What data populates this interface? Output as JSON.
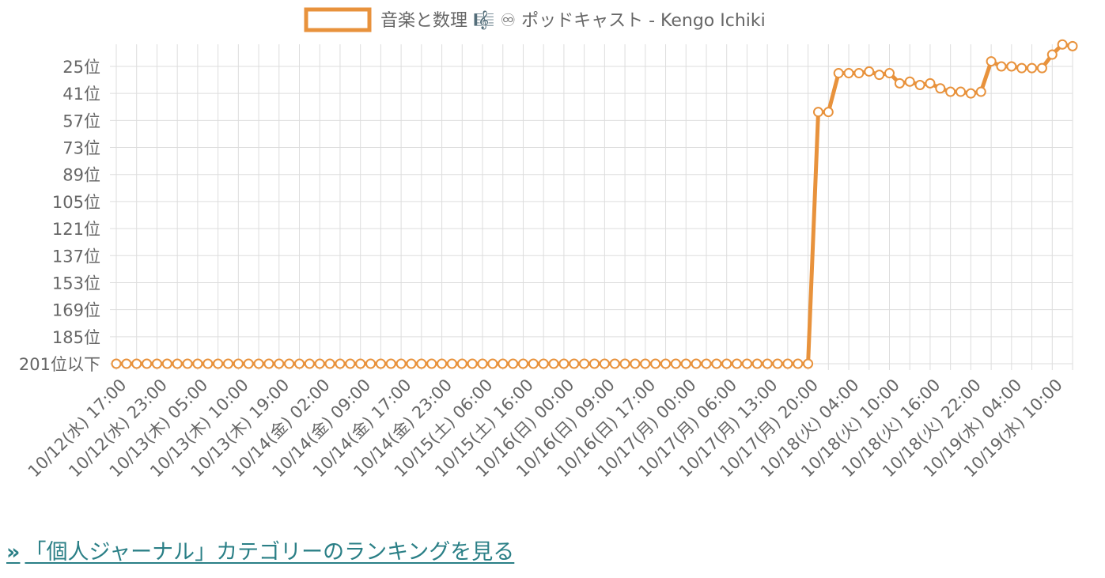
{
  "colors": {
    "series": "#e8923c",
    "grid": "#dddddd",
    "tick_text": "#666666",
    "link": "#2a7f86"
  },
  "link": {
    "icon": "double-chevron-right-icon",
    "chevron": "»",
    "label": "「個人ジャーナル」カテゴリーのランキングを見る"
  },
  "chart_data": {
    "type": "line",
    "grid": true,
    "legend_position": "top-center",
    "y_inverted": true,
    "ylim": [
      1,
      201
    ],
    "y_ticks": [
      25,
      41,
      57,
      73,
      89,
      105,
      121,
      137,
      153,
      169,
      185,
      201
    ],
    "y_tick_labels": [
      "25位",
      "41位",
      "57位",
      "73位",
      "89位",
      "105位",
      "121位",
      "137位",
      "153位",
      "169位",
      "185位",
      "201位以下"
    ],
    "x_tick_labels": [
      "10/12(水) 17:00",
      "10/12(水) 23:00",
      "10/13(木) 05:00",
      "10/13(木) 10:00",
      "10/13(木) 19:00",
      "10/14(金) 02:00",
      "10/14(金) 09:00",
      "10/14(金) 17:00",
      "10/14(金) 23:00",
      "10/15(土) 06:00",
      "10/15(土) 16:00",
      "10/16(日) 00:00",
      "10/16(日) 09:00",
      "10/16(日) 17:00",
      "10/17(月) 00:00",
      "10/17(月) 06:00",
      "10/17(月) 13:00",
      "10/17(月) 20:00",
      "10/18(火) 04:00",
      "10/18(火) 10:00",
      "10/18(火) 16:00",
      "10/18(火) 22:00",
      "10/19(水) 04:00",
      "10/19(水) 10:00"
    ],
    "series": [
      {
        "name": "音楽と数理 🎼 ♾ ポッドキャスト - Kengo Ichiki",
        "values": [
          201,
          201,
          201,
          201,
          201,
          201,
          201,
          201,
          201,
          201,
          201,
          201,
          201,
          201,
          201,
          201,
          201,
          201,
          201,
          201,
          201,
          201,
          201,
          201,
          201,
          201,
          201,
          201,
          201,
          201,
          201,
          201,
          201,
          201,
          201,
          201,
          201,
          201,
          201,
          201,
          201,
          201,
          201,
          201,
          201,
          201,
          201,
          201,
          201,
          201,
          201,
          201,
          201,
          201,
          201,
          201,
          201,
          201,
          201,
          201,
          201,
          201,
          201,
          201,
          201,
          201,
          201,
          201,
          201,
          52,
          52,
          29,
          29,
          29,
          28,
          30,
          29,
          35,
          34,
          36,
          35,
          38,
          40,
          40,
          41,
          40,
          22,
          25,
          25,
          26,
          26,
          26,
          18,
          12,
          13
        ]
      }
    ]
  }
}
